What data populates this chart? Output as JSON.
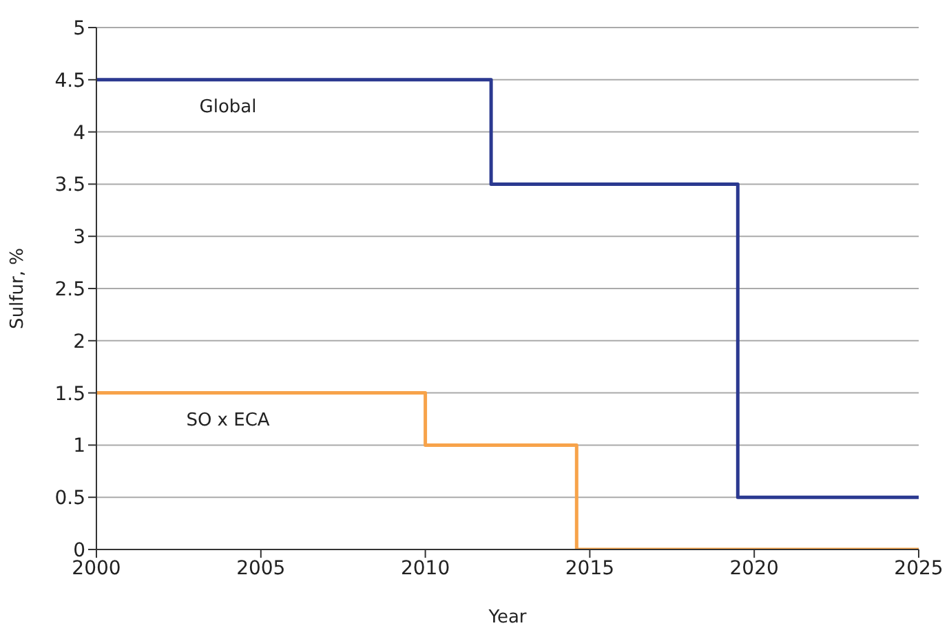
{
  "chart_data": {
    "type": "step",
    "xlabel": "Year",
    "ylabel": "Sulfur, %",
    "series": [
      {
        "name": "Global",
        "color": "#2b3990",
        "x": [
          2000,
          2012,
          2019.5,
          2025
        ],
        "values": [
          4.5,
          3.5,
          0.5,
          0.5
        ]
      },
      {
        "name": "SO x ECA",
        "color": "#f7a34a",
        "x": [
          2000,
          2010,
          2014.6,
          2025
        ],
        "values": [
          1.5,
          1,
          0,
          0
        ]
      }
    ],
    "xlim": [
      2000,
      2025
    ],
    "xticks": [
      2000,
      2005,
      2010,
      2015,
      2020,
      2025
    ],
    "ylim": [
      0,
      5
    ],
    "yticks": [
      0,
      0.5,
      1,
      1.5,
      2,
      2.5,
      3,
      3.5,
      4,
      4.5,
      5
    ],
    "grid": "y",
    "marker": "none",
    "line_style": "solid"
  }
}
